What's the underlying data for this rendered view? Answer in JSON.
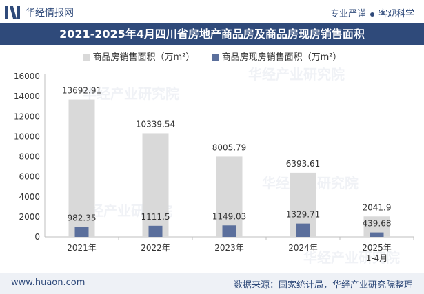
{
  "header": {
    "brand": "华经情报网",
    "slogan_left": "专业严谨",
    "slogan_right": "客观科学"
  },
  "title": "2021-2025年4月四川省房地产商品房及商品房现房销售面积",
  "watermark": "华经产业研究院",
  "footer": {
    "site": "www.huaon.com",
    "source": "数据来源：国家统计局，华经产业研究院整理"
  },
  "colors": {
    "primary": "#2f4a7a",
    "series1": "#d9d9d9",
    "series2": "#5b6f9c"
  },
  "chart_data": {
    "type": "bar",
    "categories": [
      "2021年",
      "2022年",
      "2023年",
      "2024年",
      "2025年\n1-4月"
    ],
    "series": [
      {
        "name": "商品房销售面积（万m²）",
        "values": [
          13692.91,
          10339.54,
          8005.79,
          6393.61,
          2041.9
        ],
        "labels": [
          "13692.91",
          "10339.54",
          "8005.79",
          "6393.61",
          "2041.9"
        ]
      },
      {
        "name": "商品房现房销售面积（万m²）",
        "values": [
          982.35,
          1111.5,
          1149.03,
          1329.71,
          439.68
        ],
        "labels": [
          "982.35",
          "1111.5",
          "1149.03",
          "1329.71",
          "439.68"
        ]
      }
    ],
    "yticks": [
      "0",
      "2000",
      "4000",
      "6000",
      "8000",
      "10000",
      "12000",
      "14000",
      "16000"
    ],
    "ylim": [
      0,
      16000
    ],
    "grid": false,
    "legend": "top-center"
  }
}
